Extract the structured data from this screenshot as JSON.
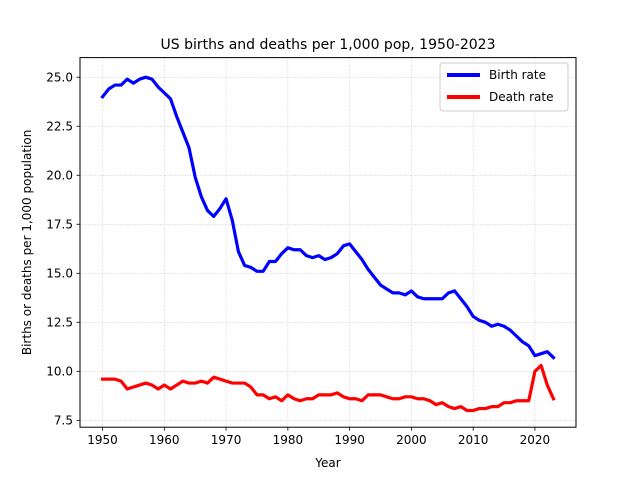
{
  "chart_data": {
    "type": "line",
    "title": "US births and deaths per 1,000 pop, 1950-2023",
    "xlabel": "Year",
    "ylabel": "Births or deaths per 1,000 population",
    "xlim": [
      1946.35,
      2026.65
    ],
    "ylim": [
      7.15,
      26.0
    ],
    "xticks": [
      1950,
      1960,
      1970,
      1980,
      1990,
      2000,
      2010,
      2020
    ],
    "yticks": [
      "7.5",
      "10.0",
      "12.5",
      "15.0",
      "17.5",
      "20.0",
      "22.5",
      "25.0"
    ],
    "grid": true,
    "legend_position": "top-right",
    "x": [
      1950,
      1951,
      1952,
      1953,
      1954,
      1955,
      1956,
      1957,
      1958,
      1959,
      1960,
      1961,
      1962,
      1963,
      1964,
      1965,
      1966,
      1967,
      1968,
      1969,
      1970,
      1971,
      1972,
      1973,
      1974,
      1975,
      1976,
      1977,
      1978,
      1979,
      1980,
      1981,
      1982,
      1983,
      1984,
      1985,
      1986,
      1987,
      1988,
      1989,
      1990,
      1991,
      1992,
      1993,
      1994,
      1995,
      1996,
      1997,
      1998,
      1999,
      2000,
      2001,
      2002,
      2003,
      2004,
      2005,
      2006,
      2007,
      2008,
      2009,
      2010,
      2011,
      2012,
      2013,
      2014,
      2015,
      2016,
      2017,
      2018,
      2019,
      2020,
      2021,
      2022,
      2023
    ],
    "series": [
      {
        "name": "Birth rate",
        "color": "#0000ff",
        "values": [
          24.0,
          24.4,
          24.6,
          24.6,
          24.9,
          24.7,
          24.9,
          25.0,
          24.9,
          24.5,
          24.2,
          23.9,
          23.0,
          22.2,
          21.4,
          19.9,
          18.9,
          18.2,
          17.9,
          18.3,
          18.8,
          17.7,
          16.1,
          15.4,
          15.3,
          15.1,
          15.1,
          15.6,
          15.6,
          16.0,
          16.3,
          16.2,
          16.2,
          15.9,
          15.8,
          15.9,
          15.7,
          15.8,
          16.0,
          16.4,
          16.5,
          16.1,
          15.7,
          15.2,
          14.8,
          14.4,
          14.2,
          14.0,
          14.0,
          13.9,
          14.1,
          13.8,
          13.7,
          13.7,
          13.7,
          13.7,
          14.0,
          14.1,
          13.7,
          13.3,
          12.8,
          12.6,
          12.5,
          12.3,
          12.4,
          12.3,
          12.1,
          11.8,
          11.5,
          11.3,
          10.8,
          10.9,
          11.0,
          10.7
        ]
      },
      {
        "name": "Death rate",
        "color": "#ff0000",
        "values": [
          9.6,
          9.6,
          9.6,
          9.5,
          9.1,
          9.2,
          9.3,
          9.4,
          9.3,
          9.1,
          9.3,
          9.1,
          9.3,
          9.5,
          9.4,
          9.4,
          9.5,
          9.4,
          9.7,
          9.6,
          9.5,
          9.4,
          9.4,
          9.4,
          9.2,
          8.8,
          8.8,
          8.6,
          8.7,
          8.5,
          8.8,
          8.6,
          8.5,
          8.6,
          8.6,
          8.8,
          8.8,
          8.8,
          8.9,
          8.7,
          8.6,
          8.6,
          8.5,
          8.8,
          8.8,
          8.8,
          8.7,
          8.6,
          8.6,
          8.7,
          8.7,
          8.6,
          8.6,
          8.5,
          8.3,
          8.4,
          8.2,
          8.1,
          8.2,
          8.0,
          8.0,
          8.1,
          8.1,
          8.2,
          8.2,
          8.4,
          8.4,
          8.5,
          8.5,
          8.5,
          10.0,
          10.3,
          9.3,
          8.6
        ]
      }
    ]
  }
}
